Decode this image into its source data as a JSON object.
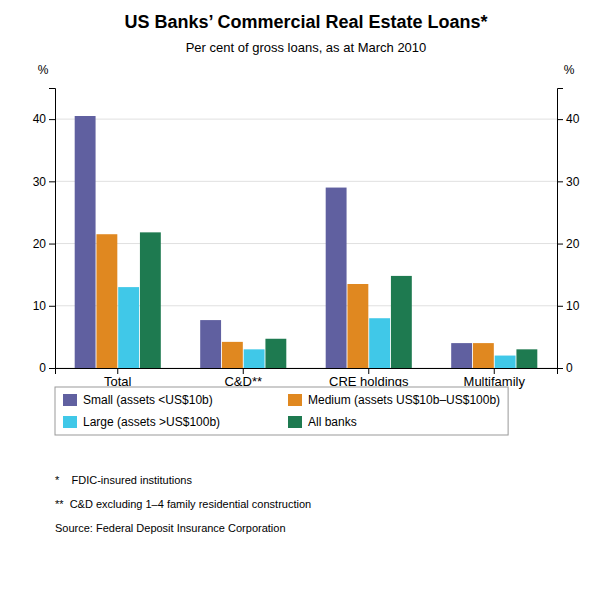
{
  "chart_data": {
    "type": "bar",
    "title": "US Banks’ Commercial Real Estate Loans*",
    "subtitle": "Per cent of gross loans, as at March 2010",
    "categories": [
      "Total",
      "C&D**",
      "CRE holdings",
      "Multifamily"
    ],
    "series": [
      {
        "name": "Small (assets <US$10b)",
        "color": "#6060a0",
        "values": [
          40.5,
          7.7,
          29.0,
          4.0
        ]
      },
      {
        "name": "Medium (assets US$10b–US$100b)",
        "color": "#e08820",
        "values": [
          21.5,
          4.2,
          13.5,
          4.0
        ]
      },
      {
        "name": "Large (assets >US$100b)",
        "color": "#40c8e8",
        "values": [
          13.0,
          3.0,
          8.0,
          2.0
        ]
      },
      {
        "name": "All banks",
        "color": "#1e7a50",
        "values": [
          21.8,
          4.7,
          14.8,
          3.0
        ]
      }
    ],
    "y_label": "%",
    "y2_label": "%",
    "ylim": [
      0,
      45
    ],
    "yticks": [
      0,
      10,
      20,
      30,
      40
    ],
    "y2lim": [
      0,
      45
    ],
    "y2ticks": [
      0,
      10,
      20,
      30,
      40
    ],
    "grid": true,
    "legend": "bottom",
    "annotations": [
      "*    FDIC-insured institutions",
      "**  C&D excluding 1–4 family residential construction",
      "Source: Federal Deposit Insurance Corporation"
    ]
  }
}
